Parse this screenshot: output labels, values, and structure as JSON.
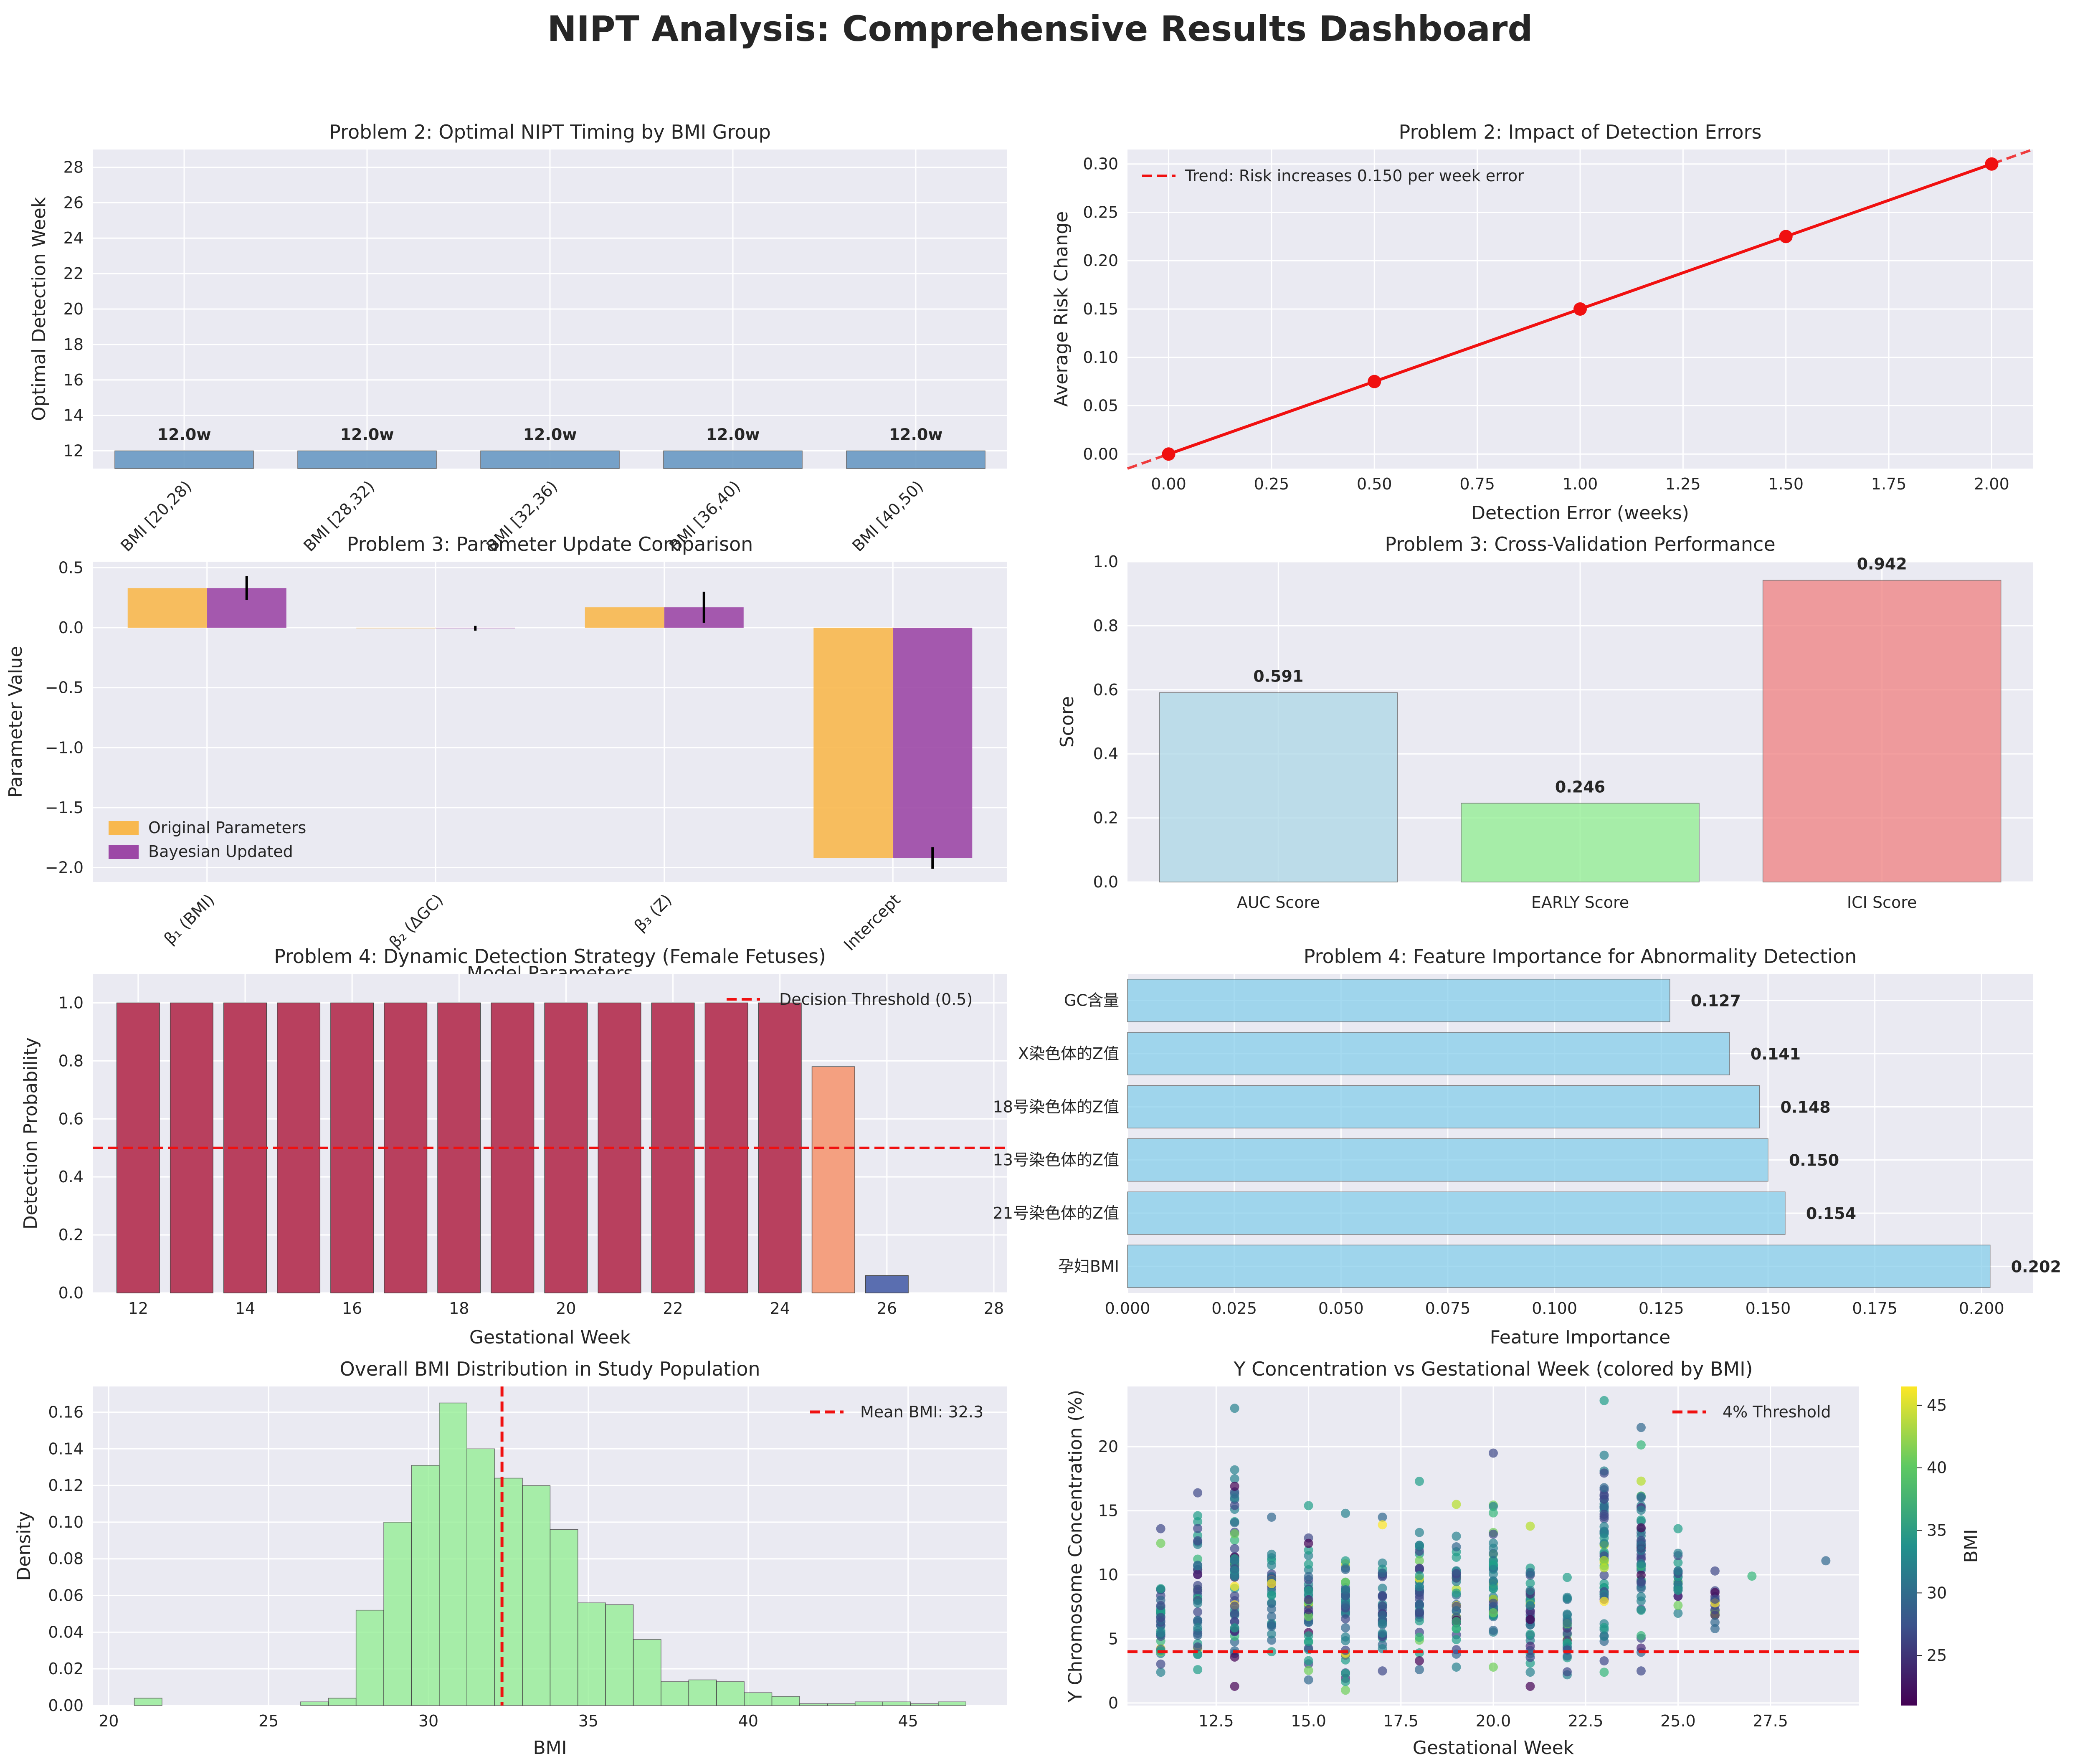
{
  "title": "NIPT Analysis: Comprehensive Results Dashboard",
  "colors": {
    "bg": "#EAEAF2",
    "steel": "#6A9AC4",
    "orange": "#F8B84E",
    "purple": "#9C48A6",
    "red": "#F01010",
    "lightblue": "#ADD8E6",
    "lightgreen": "#90EE90",
    "lightcoral": "#F08080",
    "skyblue": "#87CEEB",
    "crimson": "#B8405E",
    "salmon": "#F4A080",
    "navy": "#5A6EB0"
  },
  "chart_data": [
    {
      "id": "p1",
      "type": "bar",
      "title": "Problem 2: Optimal NIPT Timing by BMI Group",
      "xlabel": "",
      "ylabel": "Optimal Detection Week",
      "categories": [
        "BMI [20,28)",
        "BMI [28,32)",
        "BMI [32,36)",
        "BMI [36,40)",
        "BMI [40,50)"
      ],
      "values": [
        12.0,
        12.0,
        12.0,
        12.0,
        12.0
      ],
      "labels": [
        "12.0w",
        "12.0w",
        "12.0w",
        "12.0w",
        "12.0w"
      ],
      "ylim": [
        11,
        29
      ],
      "yticks": [
        12,
        14,
        16,
        18,
        20,
        22,
        24,
        26,
        28
      ]
    },
    {
      "id": "p2",
      "type": "line",
      "title": "Problem 2: Impact of Detection Errors",
      "xlabel": "Detection Error (weeks)",
      "ylabel": "Average Risk Change",
      "x": [
        0.0,
        0.5,
        1.0,
        1.5,
        2.0
      ],
      "y": [
        0.0,
        0.075,
        0.15,
        0.225,
        0.3
      ],
      "trend_label": "Trend: Risk increases 0.150 per week error",
      "xlim": [
        -0.1,
        2.1
      ],
      "ylim": [
        -0.015,
        0.315
      ],
      "xticks": [
        "0.00",
        "0.25",
        "0.50",
        "0.75",
        "1.00",
        "1.25",
        "1.50",
        "1.75",
        "2.00"
      ],
      "yticks": [
        "0.00",
        "0.05",
        "0.10",
        "0.15",
        "0.20",
        "0.25",
        "0.30"
      ]
    },
    {
      "id": "p3",
      "type": "bar",
      "title": "Problem 3: Parameter Update Comparison",
      "xlabel": "Model Parameters",
      "ylabel": "Parameter Value",
      "categories": [
        "β₁ (BMI)",
        "β₂ (ΔGC)",
        "β₃ (Z)",
        "Intercept"
      ],
      "series": [
        {
          "name": "Original Parameters",
          "values": [
            0.33,
            -0.005,
            0.17,
            -1.92
          ]
        },
        {
          "name": "Bayesian Updated",
          "values": [
            0.33,
            -0.005,
            0.17,
            -1.92
          ],
          "errors": [
            0.1,
            0.02,
            0.13,
            0.09
          ]
        }
      ],
      "ylim": [
        -2.12,
        0.55
      ],
      "yticks": [
        "0.5",
        "0.0",
        "−0.5",
        "−1.0",
        "−1.5",
        "−2.0"
      ]
    },
    {
      "id": "p4",
      "type": "bar",
      "title": "Problem 3: Cross-Validation Performance",
      "xlabel": "",
      "ylabel": "Score",
      "categories": [
        "AUC Score",
        "EARLY Score",
        "ICI Score"
      ],
      "values": [
        0.591,
        0.246,
        0.942
      ],
      "labels": [
        "0.591",
        "0.246",
        "0.942"
      ],
      "ylim": [
        0,
        1.0
      ],
      "yticks": [
        "0.0",
        "0.2",
        "0.4",
        "0.6",
        "0.8",
        "1.0"
      ]
    },
    {
      "id": "p5",
      "type": "bar",
      "title": "Problem 4: Dynamic Detection Strategy (Female Fetuses)",
      "xlabel": "Gestational Week",
      "ylabel": "Detection Probability",
      "x": [
        12,
        13,
        14,
        15,
        16,
        17,
        18,
        19,
        20,
        21,
        22,
        23,
        24,
        25,
        26,
        27
      ],
      "values": [
        1,
        1,
        1,
        1,
        1,
        1,
        1,
        1,
        1,
        1,
        1,
        1,
        1,
        0.78,
        0.06,
        0
      ],
      "threshold": 0.5,
      "threshold_label": "Decision Threshold (0.5)",
      "xlim": [
        11.15,
        28.25
      ],
      "ylim": [
        0,
        1.1
      ],
      "xticks": [
        12,
        14,
        16,
        18,
        20,
        22,
        24,
        26,
        28
      ],
      "yticks": [
        "0.0",
        "0.2",
        "0.4",
        "0.6",
        "0.8",
        "1.0"
      ]
    },
    {
      "id": "p6",
      "type": "bar",
      "title": "Problem 4: Feature Importance for Abnormality Detection",
      "xlabel": "Feature Importance",
      "ylabel": "",
      "categories": [
        "孕妇BMI",
        "21号染色体的Z值",
        "13号染色体的Z值",
        "18号染色体的Z值",
        "X染色体的Z值",
        "GC含量"
      ],
      "tick_labels": [
        "孕妇BMI",
        "21号染色体的Z值",
        "13号染色体的Z值",
        "18号染色体的Z值",
        "X染色体的Z值",
        "GC含量"
      ],
      "values": [
        0.202,
        0.154,
        0.15,
        0.148,
        0.141,
        0.127
      ],
      "labels": [
        "0.202",
        "0.154",
        "0.150",
        "0.148",
        "0.141",
        "0.127"
      ],
      "xlim": [
        0,
        0.212
      ],
      "xticks": [
        "0.000",
        "0.025",
        "0.050",
        "0.075",
        "0.100",
        "0.125",
        "0.150",
        "0.175",
        "0.200"
      ]
    },
    {
      "id": "p7",
      "type": "bar",
      "title": "Overall BMI Distribution in Study Population",
      "xlabel": "BMI",
      "ylabel": "Density",
      "bin_start": 20.8,
      "bin_width": 0.867,
      "densities": [
        0.004,
        0,
        0,
        0,
        0,
        0,
        0.002,
        0.004,
        0.052,
        0.1,
        0.131,
        0.165,
        0.14,
        0.124,
        0.12,
        0.096,
        0.056,
        0.055,
        0.036,
        0.013,
        0.014,
        0.013,
        0.007,
        0.005,
        0.001,
        0.001,
        0.002,
        0.002,
        0.001,
        0.002
      ],
      "mean": 32.3,
      "mean_label": "Mean BMI: 32.3",
      "xlim": [
        19.5,
        48.1
      ],
      "ylim": [
        0,
        0.174
      ],
      "xticks": [
        20,
        25,
        30,
        35,
        40,
        45
      ],
      "yticks": [
        "0.00",
        "0.02",
        "0.04",
        "0.06",
        "0.08",
        "0.10",
        "0.12",
        "0.14",
        "0.16"
      ]
    },
    {
      "id": "p8",
      "type": "scatter",
      "title": "Y Concentration vs Gestational Week (colored by BMI)",
      "xlabel": "Gestational Week",
      "ylabel": "Y Chromosome Concentration (%)",
      "colorbar_label": "BMI",
      "threshold": 4,
      "threshold_label": "4% Threshold",
      "weeks": [
        11,
        12,
        13,
        14,
        15,
        16,
        17,
        18,
        19,
        20,
        21,
        22,
        23,
        24,
        25,
        26,
        27,
        29
      ],
      "point_ranges": [
        [
          2.4,
          13.6
        ],
        [
          2.6,
          16.4
        ],
        [
          1.3,
          23.0
        ],
        [
          4.0,
          14.5
        ],
        [
          1.8,
          15.4
        ],
        [
          1.0,
          14.8
        ],
        [
          2.5,
          14.5
        ],
        [
          2.6,
          17.3
        ],
        [
          2.8,
          15.5
        ],
        [
          2.8,
          19.5
        ],
        [
          1.3,
          13.8
        ],
        [
          2.2,
          9.8
        ],
        [
          2.4,
          23.6
        ],
        [
          2.5,
          21.5
        ],
        [
          7.0,
          13.6
        ],
        [
          5.8,
          10.3
        ],
        [
          9.9,
          9.9
        ],
        [
          11.1,
          11.1
        ]
      ],
      "xlim": [
        10.1,
        29.9
      ],
      "ylim": [
        -0.2,
        24.7
      ],
      "xticks": [
        "12.5",
        "15.0",
        "17.5",
        "20.0",
        "22.5",
        "25.0",
        "27.5"
      ],
      "yticks": [
        "0",
        "5",
        "10",
        "15",
        "20"
      ],
      "bmi_range": [
        21,
        46.5
      ],
      "colorbar_ticks": [
        "25",
        "30",
        "35",
        "40",
        "45"
      ]
    }
  ]
}
